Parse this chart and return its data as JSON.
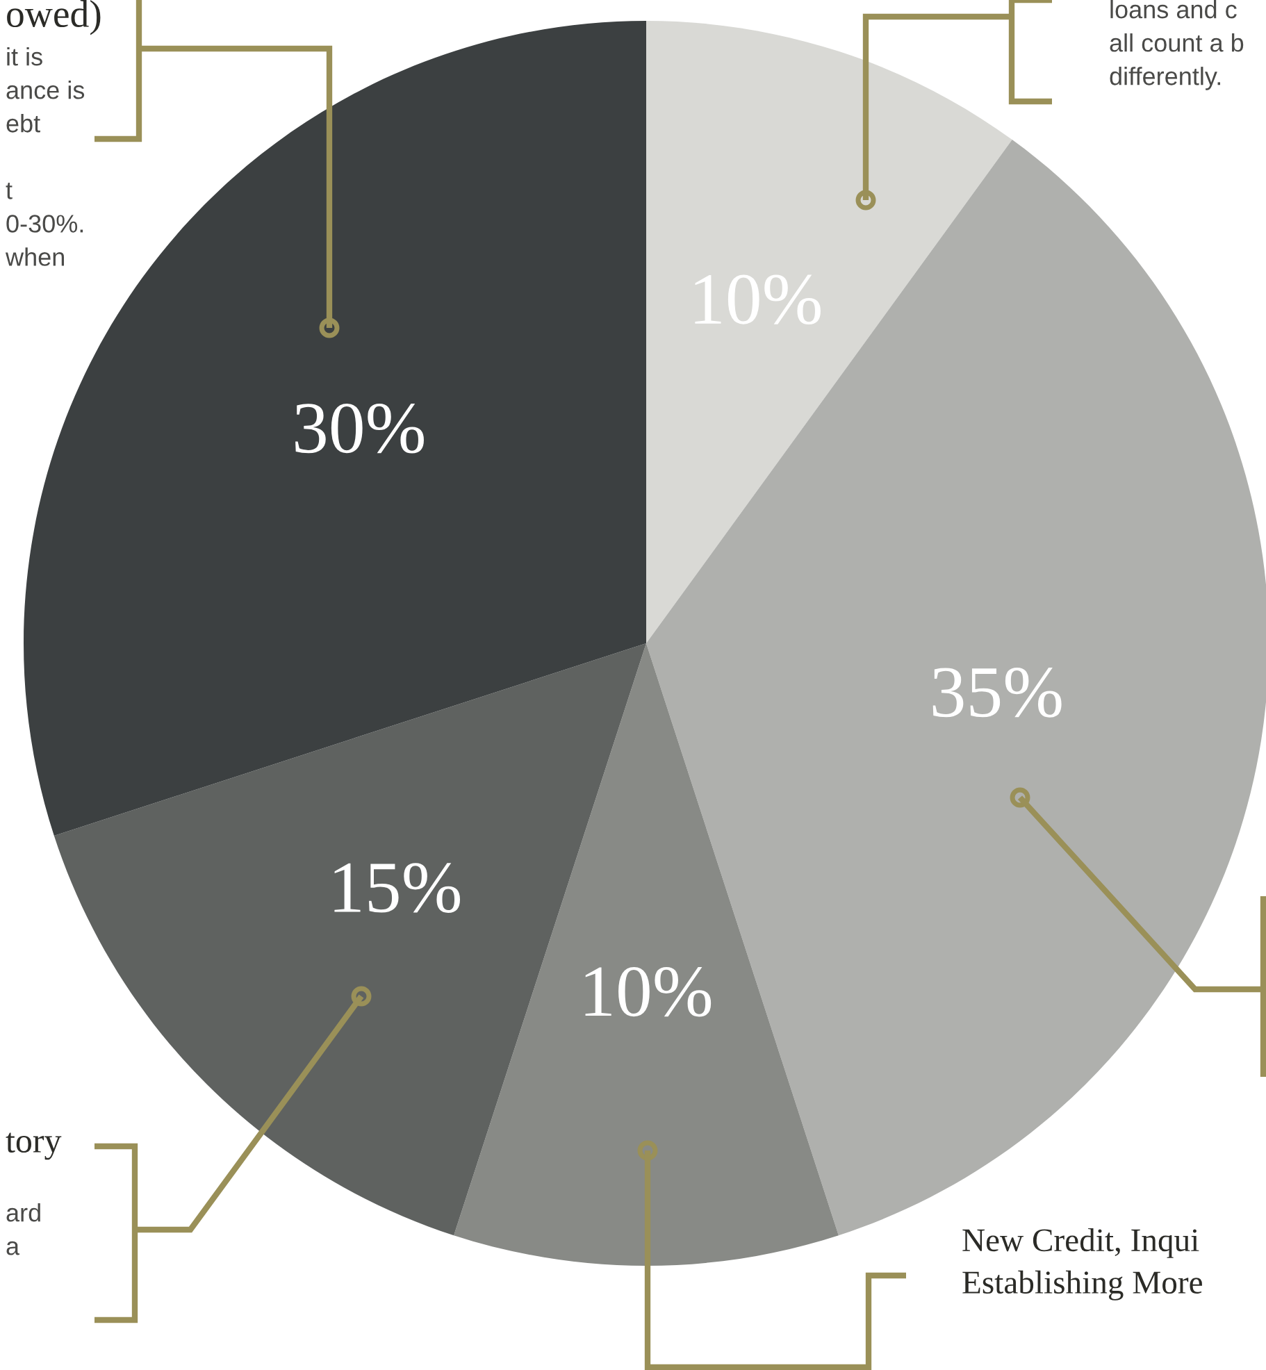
{
  "chart_data": {
    "type": "pie",
    "categories": [
      null,
      null,
      null,
      null,
      null
    ],
    "values": [
      10,
      35,
      10,
      15,
      30
    ],
    "value_labels": [
      "10%",
      "35%",
      "10%",
      "15%",
      "30%"
    ],
    "colors": [
      "#d9d9d5",
      "#afb0ad",
      "#888a86",
      "#5f6260",
      "#3c4041"
    ],
    "annotations": [
      "owed)",
      "it is\nance is\nebt\n\nt\n0-30%.\nwhen",
      "loans and c\nall count a b\ndifferently.",
      "tory",
      "ard\na",
      "New Credit, Inqui\nEstablishing More"
    ]
  }
}
